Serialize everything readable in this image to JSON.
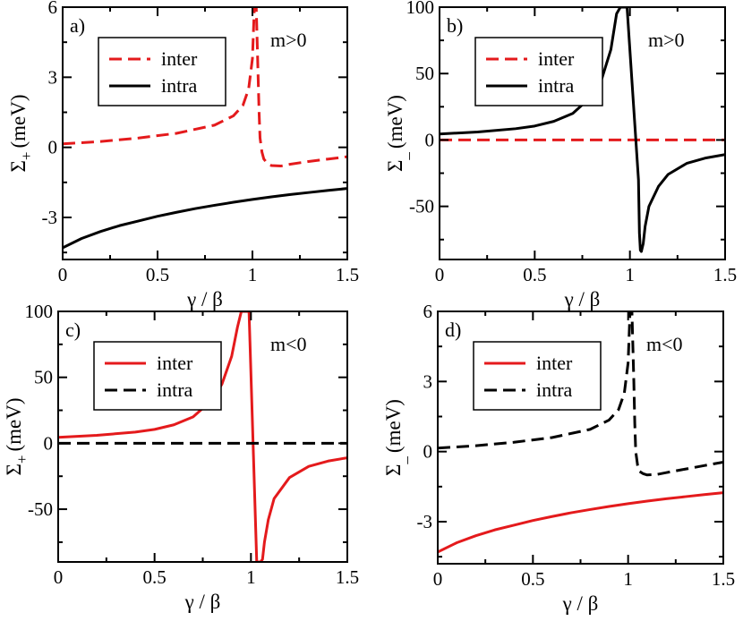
{
  "chart_data": [
    {
      "type": "line",
      "panel_label": "a)",
      "annotation": "m>0",
      "xlabel": "γ / β",
      "ylabel_main": "Σ",
      "ylabel_sub": "+",
      "ylabel_unit": "(meV)",
      "xlim": [
        0,
        1.5
      ],
      "ylim": [
        -4.8,
        6
      ],
      "xticks": [
        0,
        0.5,
        1,
        1.5
      ],
      "xtick_labels": [
        "0",
        "0.5",
        "1",
        "1.5"
      ],
      "yticks": [
        -3,
        0,
        3,
        6
      ],
      "ytick_labels": [
        "-3",
        "0",
        "3",
        "6"
      ],
      "legend_position": "top-left",
      "series": [
        {
          "name": "inter",
          "color": "#e41a1c",
          "style": "dashed",
          "x": [
            0,
            0.2,
            0.4,
            0.6,
            0.8,
            0.9,
            0.95,
            0.98,
            1.0,
            1.01,
            1.02,
            1.03,
            1.035,
            1.04,
            1.05,
            1.06,
            1.08,
            1.1,
            1.15,
            1.2,
            1.3,
            1.4,
            1.5
          ],
          "y": [
            0.15,
            0.25,
            0.4,
            0.6,
            0.95,
            1.35,
            1.8,
            2.5,
            3.8,
            6,
            6,
            3.0,
            1.5,
            0.4,
            -0.2,
            -0.5,
            -0.7,
            -0.78,
            -0.8,
            -0.72,
            -0.6,
            -0.5,
            -0.4
          ]
        },
        {
          "name": "intra",
          "color": "#000000",
          "style": "solid",
          "x": [
            0,
            0.1,
            0.2,
            0.3,
            0.4,
            0.5,
            0.6,
            0.7,
            0.8,
            0.9,
            1.0,
            1.1,
            1.2,
            1.3,
            1.4,
            1.5
          ],
          "y": [
            -4.3,
            -3.9,
            -3.6,
            -3.35,
            -3.15,
            -2.95,
            -2.78,
            -2.62,
            -2.48,
            -2.35,
            -2.23,
            -2.12,
            -2.02,
            -1.93,
            -1.84,
            -1.76
          ]
        }
      ]
    },
    {
      "type": "line",
      "panel_label": "b)",
      "annotation": "m>0",
      "xlabel": "γ / β",
      "ylabel_main": "Σ",
      "ylabel_sub": "_",
      "ylabel_unit": "(meV)",
      "xlim": [
        0,
        1.5
      ],
      "ylim": [
        -90,
        100
      ],
      "xticks": [
        0,
        0.5,
        1,
        1.5
      ],
      "xtick_labels": [
        "0",
        "0.5",
        "1",
        "1.5"
      ],
      "yticks": [
        -50,
        0,
        50,
        100
      ],
      "ytick_labels": [
        "-50",
        "0",
        "50",
        "100"
      ],
      "legend_position": "top-left",
      "series": [
        {
          "name": "inter",
          "color": "#e41a1c",
          "style": "dashed",
          "x": [
            0,
            0.5,
            1.0,
            1.5
          ],
          "y": [
            0,
            0,
            0,
            0
          ]
        },
        {
          "name": "intra",
          "color": "#000000",
          "style": "solid",
          "x": [
            0,
            0.2,
            0.4,
            0.5,
            0.6,
            0.7,
            0.8,
            0.85,
            0.9,
            0.93,
            0.95,
            0.97,
            0.98,
            0.985,
            1.045,
            1.05,
            1.055,
            1.06,
            1.07,
            1.08,
            1.1,
            1.15,
            1.2,
            1.3,
            1.4,
            1.5
          ],
          "y": [
            4.5,
            6,
            8.5,
            10.5,
            14,
            20,
            33,
            45,
            68,
            95,
            100,
            100,
            100,
            100,
            -30,
            -70,
            -83,
            -84,
            -78,
            -65,
            -50,
            -35,
            -26,
            -17.5,
            -13.5,
            -11
          ]
        }
      ]
    },
    {
      "type": "line",
      "panel_label": "c)",
      "annotation": "m<0",
      "xlabel": "γ / β",
      "ylabel_main": "Σ",
      "ylabel_sub": "+",
      "ylabel_unit": "(meV)",
      "xlim": [
        0,
        1.5
      ],
      "ylim": [
        -90,
        100
      ],
      "xticks": [
        0,
        0.5,
        1,
        1.5
      ],
      "xtick_labels": [
        "0",
        "0.5",
        "1",
        "1.5"
      ],
      "yticks": [
        -50,
        0,
        50,
        100
      ],
      "ytick_labels": [
        "-50",
        "0",
        "50",
        "100"
      ],
      "legend_position": "top-left",
      "series": [
        {
          "name": "inter",
          "color": "#e41a1c",
          "style": "solid",
          "x": [
            0,
            0.2,
            0.4,
            0.5,
            0.6,
            0.7,
            0.8,
            0.85,
            0.9,
            0.93,
            0.95,
            0.97,
            0.98,
            0.99,
            1.03,
            1.035,
            1.04,
            1.05,
            1.06,
            1.07,
            1.09,
            1.12,
            1.2,
            1.3,
            1.4,
            1.5
          ],
          "y": [
            4.5,
            6,
            8.5,
            10.5,
            14,
            20,
            33,
            45,
            66,
            88,
            100,
            100,
            100,
            100,
            -90,
            -90,
            -90,
            -90,
            -88,
            -75,
            -58,
            -42,
            -26,
            -17.5,
            -13.5,
            -11
          ]
        },
        {
          "name": "intra",
          "color": "#000000",
          "style": "dashed",
          "x": [
            0,
            0.5,
            1.0,
            1.5
          ],
          "y": [
            0,
            0,
            0,
            0
          ]
        }
      ]
    },
    {
      "type": "line",
      "panel_label": "d)",
      "annotation": "m<0",
      "xlabel": "γ / β",
      "ylabel_main": "Σ",
      "ylabel_sub": "_",
      "ylabel_unit": "(meV)",
      "xlim": [
        0,
        1.5
      ],
      "ylim": [
        -4.8,
        6
      ],
      "xticks": [
        0,
        0.5,
        1,
        1.5
      ],
      "xtick_labels": [
        "0",
        "0.5",
        "1",
        "1.5"
      ],
      "yticks": [
        -3,
        0,
        3,
        6
      ],
      "ytick_labels": [
        "-3",
        "0",
        "3",
        "6"
      ],
      "legend_position": "top-left",
      "series": [
        {
          "name": "inter",
          "color": "#e41a1c",
          "style": "solid",
          "x": [
            0,
            0.1,
            0.2,
            0.3,
            0.4,
            0.5,
            0.6,
            0.7,
            0.8,
            0.9,
            1.0,
            1.1,
            1.2,
            1.3,
            1.4,
            1.5
          ],
          "y": [
            -4.3,
            -3.9,
            -3.6,
            -3.35,
            -3.15,
            -2.95,
            -2.78,
            -2.62,
            -2.48,
            -2.35,
            -2.23,
            -2.12,
            -2.02,
            -1.93,
            -1.84,
            -1.76
          ]
        },
        {
          "name": "intra",
          "color": "#000000",
          "style": "dashed",
          "x": [
            0,
            0.2,
            0.4,
            0.6,
            0.8,
            0.9,
            0.95,
            0.98,
            1.0,
            1.01,
            1.02,
            1.03,
            1.035,
            1.04,
            1.05,
            1.06,
            1.08,
            1.1,
            1.15,
            1.2,
            1.3,
            1.4,
            1.5
          ],
          "y": [
            0.15,
            0.25,
            0.4,
            0.6,
            0.95,
            1.35,
            1.8,
            2.5,
            3.8,
            6,
            6,
            3.0,
            1.2,
            0.0,
            -0.6,
            -0.85,
            -0.95,
            -1.0,
            -0.98,
            -0.9,
            -0.75,
            -0.6,
            -0.45
          ]
        }
      ]
    }
  ]
}
